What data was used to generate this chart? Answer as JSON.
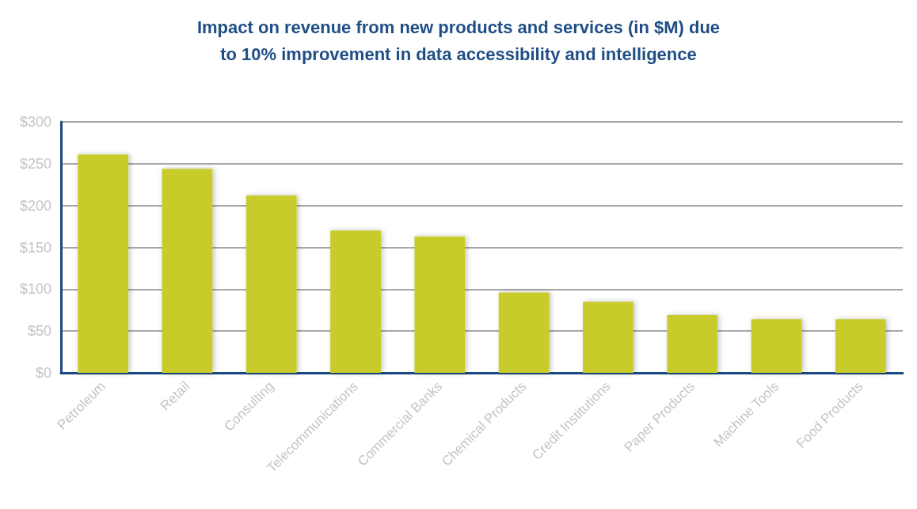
{
  "chart_data": {
    "type": "bar",
    "title": "Impact on revenue from new products and services (in $M) due\nto 10% improvement in data accessibility and intelligence",
    "categories": [
      "Petroleum",
      "Retail",
      "Consulting",
      "Telecommunications",
      "Commercial Banks",
      "Chemical Products",
      "Credit Institutions",
      "Paper Products",
      "Machine Tools",
      "Food Products"
    ],
    "values": [
      261,
      244,
      212,
      170,
      163,
      96,
      85,
      69,
      64,
      64
    ],
    "color": "#c8cc2a",
    "ylim": [
      0,
      300
    ],
    "yticks": [
      {
        "value": 0,
        "label": "$0"
      },
      {
        "value": 50,
        "label": "$50"
      },
      {
        "value": 100,
        "label": "$100"
      },
      {
        "value": 150,
        "label": "$150"
      },
      {
        "value": 200,
        "label": "$200"
      },
      {
        "value": 250,
        "label": "$250"
      },
      {
        "value": 300,
        "label": "$300"
      }
    ],
    "grid": true
  }
}
